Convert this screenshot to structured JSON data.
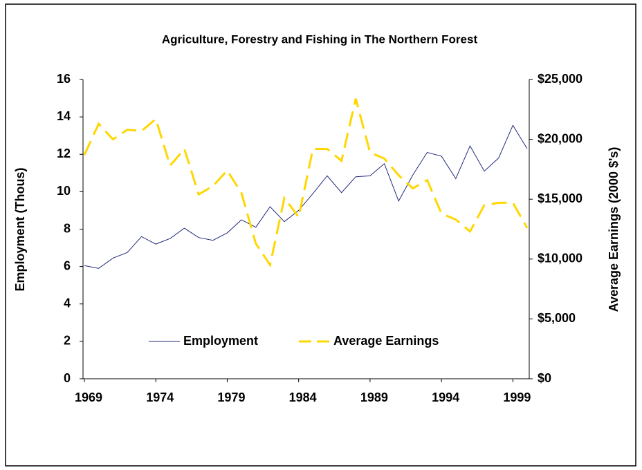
{
  "chart_data": {
    "type": "line",
    "title": "Agriculture, Forestry and Fishing in The Northern Forest",
    "ylabel": "Employment (Thous)",
    "y2label": "Average Earnings (2000 $'s)",
    "x": [
      1969,
      1970,
      1971,
      1972,
      1973,
      1974,
      1975,
      1976,
      1977,
      1978,
      1979,
      1980,
      1981,
      1982,
      1983,
      1984,
      1985,
      1986,
      1987,
      1988,
      1989,
      1990,
      1991,
      1992,
      1993,
      1994,
      1995,
      1996,
      1997,
      1998,
      1999,
      2000
    ],
    "xlim": [
      1969,
      2000
    ],
    "xticks": [
      1969,
      1974,
      1979,
      1984,
      1989,
      1994,
      1999
    ],
    "ylim": [
      0,
      16
    ],
    "yticks": [
      0,
      2,
      4,
      6,
      8,
      10,
      12,
      14,
      16
    ],
    "y2lim": [
      0,
      25000
    ],
    "y2ticks": [
      {
        "value": 0,
        "label": "$0"
      },
      {
        "value": 5000,
        "label": "$5,000"
      },
      {
        "value": 10000,
        "label": "$10,000"
      },
      {
        "value": 15000,
        "label": "$15,000"
      },
      {
        "value": 20000,
        "label": "$20,000"
      },
      {
        "value": 25000,
        "label": "$25,000"
      }
    ],
    "legend": "bottom",
    "series": [
      {
        "name": "Employment",
        "color": "#1f2a7a",
        "values": [
          6.05,
          5.9,
          6.45,
          6.75,
          7.6,
          7.2,
          7.5,
          8.05,
          7.55,
          7.4,
          7.8,
          8.5,
          8.1,
          9.2,
          8.4,
          9.0,
          9.9,
          10.85,
          9.95,
          10.8,
          10.85,
          11.5,
          9.5,
          10.9,
          12.1,
          11.9,
          10.7,
          12.45,
          11.1,
          11.8,
          13.55,
          12.3
        ]
      },
      {
        "name": "Average Earnings",
        "color": "#ffd700",
        "axis": "y2",
        "values": [
          18700,
          21300,
          20000,
          20800,
          20700,
          21700,
          17800,
          19200,
          15400,
          16100,
          17400,
          15500,
          11300,
          9500,
          15100,
          13500,
          19200,
          19200,
          18200,
          23400,
          18900,
          18400,
          17000,
          15900,
          16600,
          13800,
          13300,
          12300,
          14500,
          14700,
          14700,
          12600
        ]
      }
    ]
  }
}
